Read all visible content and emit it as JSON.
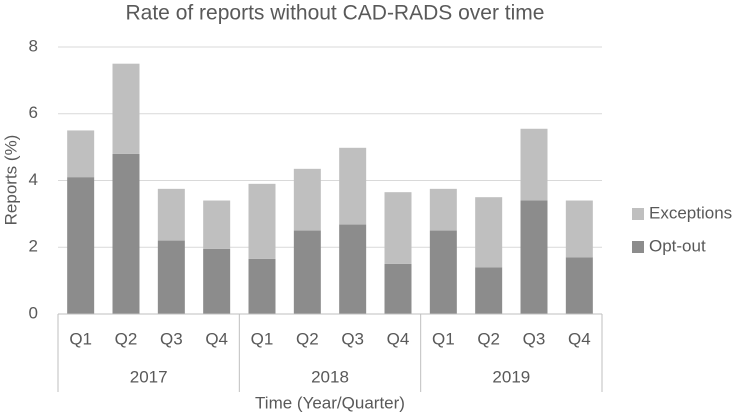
{
  "chart_data": {
    "type": "stacked_bar",
    "title": "Rate of reports without CAD-RADS over time",
    "x_label": "Time (Year/Quarter)",
    "y_label": "Reports (%)",
    "categories": [
      "Q1",
      "Q2",
      "Q3",
      "Q4",
      "Q1",
      "Q2",
      "Q3",
      "Q4",
      "Q1",
      "Q2",
      "Q3",
      "Q4"
    ],
    "category_groups": [
      "2017",
      "2018",
      "2019"
    ],
    "series": [
      {
        "name": "Opt-out",
        "color": "#8c8c8c",
        "values": [
          4.1,
          4.8,
          2.2,
          1.95,
          1.65,
          2.5,
          2.68,
          1.5,
          2.5,
          1.4,
          3.4,
          1.7
        ]
      },
      {
        "name": "Exceptions",
        "color": "#bfbfbf",
        "values": [
          1.4,
          2.7,
          1.55,
          1.45,
          2.25,
          1.85,
          2.3,
          2.15,
          1.25,
          2.1,
          2.15,
          1.7
        ]
      }
    ],
    "ylim": [
      0,
      8
    ],
    "yticks": [
      0,
      2,
      4,
      6,
      8
    ],
    "grid": true,
    "legend": "right"
  }
}
